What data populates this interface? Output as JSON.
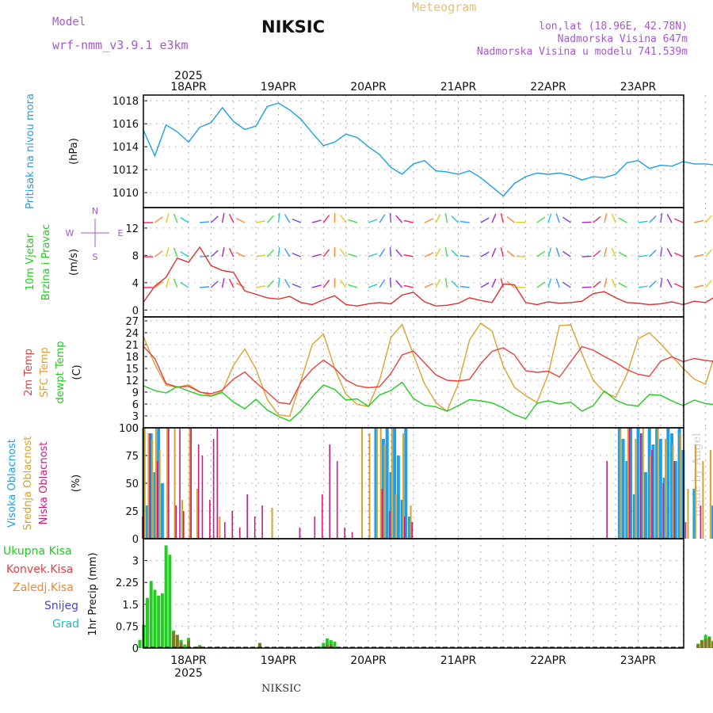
{
  "header": {
    "model_label": "Model",
    "model_name": "wrf-nmm_v3.9.1 e3km",
    "station": "NIKSIC",
    "meteogram": "Meteogram",
    "lonlat": "lon,lat (18.96E, 42.78N)",
    "altitude": "Nadmorska Visina 647m",
    "model_altitude": "Nadmorska Visina u modelu 741.539m",
    "footer_station": "NIKSIC",
    "credit": "made by Angel"
  },
  "colors": {
    "pressure": "#1ea0e6",
    "wind_axis": "#22cc22",
    "t2m": "#e84040",
    "sfc": "#e0a030",
    "dew": "#22cc22",
    "cloud_high": "#1ea0e6",
    "cloud_mid": "#d8a030",
    "cloud_low": "#cc1a80",
    "precip_total": "#22cc22",
    "precip_conv": "#e04040",
    "precip_frozen": "#ee8833",
    "precip_snow": "#4444dd",
    "precip_hail": "#22bbbb"
  },
  "chart_data": {
    "type": "meteogram",
    "x_days": [
      "18APR",
      "19APR",
      "20APR",
      "21APR",
      "22APR",
      "23APR"
    ],
    "year": "2025",
    "x_hours": [
      0,
      6,
      12,
      18,
      24,
      30,
      36,
      42,
      48,
      54,
      60,
      66,
      72,
      78,
      84,
      90,
      96,
      102,
      108,
      114,
      120,
      126,
      132,
      138
    ],
    "panels": [
      {
        "name": "pressure",
        "labels": [
          "Pritisak na nivou mora"
        ],
        "unit": "(hPa)",
        "ylim": [
          1008.7,
          1018.5
        ],
        "ticks": [
          1010,
          1012,
          1014,
          1016,
          1018
        ],
        "x": [
          -12,
          -9,
          -6,
          -3,
          0,
          3,
          6,
          9,
          12,
          15,
          18,
          21,
          24,
          27,
          30,
          33,
          36,
          39,
          42,
          45,
          48,
          51,
          54,
          57,
          60,
          63,
          66,
          69,
          72,
          75,
          78,
          81,
          84,
          87,
          90,
          93,
          96,
          99,
          102,
          105,
          108,
          111,
          114,
          117,
          120,
          123,
          126,
          129,
          132,
          135,
          138,
          141,
          144,
          147,
          150
        ],
        "values": [
          1015.4,
          1013.2,
          1015.9,
          1015.3,
          1014.4,
          1015.7,
          1016.1,
          1017.4,
          1016.2,
          1015.5,
          1015.8,
          1017.5,
          1017.8,
          1017.2,
          1016.4,
          1015.2,
          1014.1,
          1014.4,
          1015.1,
          1014.8,
          1014.0,
          1013.3,
          1012.2,
          1011.6,
          1012.5,
          1012.8,
          1011.9,
          1011.8,
          1011.6,
          1011.9,
          1011.3,
          1010.5,
          1009.7,
          1010.8,
          1011.4,
          1011.7,
          1011.6,
          1011.7,
          1011.5,
          1011.1,
          1011.4,
          1011.3,
          1011.6,
          1012.6,
          1012.8,
          1012.1,
          1012.4,
          1012.3,
          1012.7,
          1012.5,
          1012.5,
          1012.4,
          1012.2,
          1012.3,
          1012.2
        ]
      },
      {
        "name": "wind",
        "labels": [
          "10m Vjetar",
          "Brzina i Pravac"
        ],
        "unit": "(m/s)",
        "ylim": [
          -1,
          15
        ],
        "ticks": [
          0,
          4,
          8,
          12
        ],
        "compass": {
          "north": "N",
          "west": "W",
          "east": "E",
          "south": "S"
        },
        "x": [
          -12,
          -9,
          -6,
          -3,
          0,
          3,
          6,
          9,
          12,
          15,
          18,
          21,
          24,
          27,
          30,
          33,
          36,
          39,
          42,
          45,
          48,
          51,
          54,
          57,
          60,
          63,
          66,
          69,
          72,
          75,
          78,
          81,
          84,
          87,
          90,
          93,
          96,
          99,
          102,
          105,
          108,
          111,
          114,
          117,
          120,
          123,
          126,
          129,
          132,
          135,
          138,
          141,
          144,
          147,
          150
        ],
        "speed": [
          1.2,
          3.5,
          4.8,
          7.6,
          7.0,
          9.2,
          6.5,
          5.8,
          5.5,
          2.8,
          2.3,
          1.8,
          1.6,
          2.0,
          1.1,
          0.8,
          1.5,
          2.1,
          0.8,
          0.6,
          0.9,
          1.1,
          0.9,
          2.2,
          2.6,
          1.2,
          0.6,
          0.7,
          1.0,
          1.8,
          1.4,
          1.1,
          3.8,
          3.7,
          1.1,
          0.8,
          1.2,
          1.0,
          1.1,
          1.3,
          2.4,
          2.7,
          1.8,
          1.1,
          1.0,
          0.8,
          0.9,
          1.2,
          0.8,
          1.3,
          1.1,
          2.1,
          3.8,
          3.5,
          3.0
        ],
        "bands": [
          12.8,
          7.8,
          3.3
        ]
      },
      {
        "name": "temperature",
        "labels": [
          "2m Temp",
          "SFC Temp",
          "dewpt Temp"
        ],
        "unit": "(C)",
        "ylim": [
          0,
          28
        ],
        "ticks": [
          0,
          3,
          6,
          9,
          12,
          15,
          18,
          21,
          24,
          27
        ],
        "x": [
          -12,
          -9,
          -6,
          -3,
          0,
          3,
          6,
          9,
          12,
          15,
          18,
          21,
          24,
          27,
          30,
          33,
          36,
          39,
          42,
          45,
          48,
          51,
          54,
          57,
          60,
          63,
          66,
          69,
          72,
          75,
          78,
          81,
          84,
          87,
          90,
          93,
          96,
          99,
          102,
          105,
          108,
          111,
          114,
          117,
          120,
          123,
          126,
          129,
          132,
          135,
          138,
          141,
          144,
          147,
          150
        ],
        "t2m": [
          20.5,
          17.5,
          11.2,
          10.3,
          10.5,
          9.0,
          8.6,
          9.5,
          12.3,
          14.1,
          11.4,
          9.0,
          6.4,
          6.0,
          11.5,
          14.8,
          17.1,
          15.1,
          12.1,
          10.6,
          10.1,
          10.4,
          13.7,
          18.4,
          19.4,
          16.4,
          13.4,
          12.0,
          11.8,
          12.2,
          16.2,
          19.3,
          20.2,
          18.4,
          14.4,
          14.0,
          14.3,
          12.8,
          16.7,
          20.5,
          19.6,
          18.0,
          16.5,
          14.7,
          13.5,
          13.0,
          16.8,
          17.9,
          16.7,
          17.5,
          17.0,
          16.7,
          17.3,
          16.8,
          16.5
        ],
        "sfc": [
          23.0,
          16.0,
          10.8,
          10.2,
          10.9,
          9.1,
          8.1,
          9.2,
          15.8,
          19.9,
          14.8,
          7.2,
          3.3,
          2.9,
          11.9,
          21.0,
          23.7,
          15.0,
          8.5,
          5.9,
          5.4,
          12.0,
          22.8,
          26.1,
          18.5,
          11.1,
          6.4,
          4.2,
          11.1,
          22.2,
          26.4,
          24.4,
          15.5,
          10.2,
          8.1,
          6.4,
          13.5,
          25.8,
          26.0,
          18.7,
          12.0,
          9.0,
          7.7,
          13.5,
          22.5,
          24.0,
          21.2,
          18.1,
          15.0,
          12.3,
          11.0,
          20.0,
          24.0,
          18.0,
          21.0
        ],
        "dew": [
          10.6,
          9.4,
          8.8,
          10.4,
          9.3,
          8.3,
          8.0,
          8.9,
          6.5,
          4.8,
          7.2,
          4.5,
          2.9,
          1.7,
          4.3,
          7.8,
          10.8,
          9.7,
          7.0,
          7.3,
          5.4,
          8.3,
          9.4,
          11.5,
          7.4,
          5.7,
          5.3,
          4.2,
          5.6,
          7.1,
          6.8,
          6.3,
          5.0,
          3.3,
          2.3,
          6.2,
          6.8,
          6.0,
          6.5,
          4.2,
          5.6,
          9.3,
          7.0,
          5.8,
          5.5,
          8.4,
          8.2,
          6.8,
          5.6,
          7.0,
          6.1,
          5.8,
          8.3,
          10.1,
          10.2
        ]
      },
      {
        "name": "clouds",
        "labels": [
          "Visoka Oblacnost",
          "Srednja Oblacnost",
          "Niska Oblacnost"
        ],
        "unit": "(%)",
        "ylim": [
          0,
          100
        ],
        "ticks": [
          0,
          25,
          50,
          75,
          100
        ],
        "high": [
          [
            -12,
            100
          ],
          [
            -11,
            30
          ],
          [
            -10,
            95
          ],
          [
            -9,
            60
          ],
          [
            -8,
            100
          ],
          [
            -7,
            50
          ],
          [
            30,
            0
          ],
          [
            36,
            0
          ],
          [
            50,
            100
          ],
          [
            52,
            90
          ],
          [
            53,
            100
          ],
          [
            54,
            60
          ],
          [
            55,
            100
          ],
          [
            56,
            75
          ],
          [
            57,
            35
          ],
          [
            58,
            100
          ],
          [
            59,
            20
          ],
          [
            115,
            100
          ],
          [
            116,
            90
          ],
          [
            117,
            70
          ],
          [
            118,
            100
          ],
          [
            119,
            40
          ],
          [
            120,
            100
          ],
          [
            121,
            95
          ],
          [
            122,
            60
          ],
          [
            123,
            100
          ],
          [
            124,
            85
          ],
          [
            125,
            100
          ],
          [
            126,
            90
          ],
          [
            127,
            55
          ],
          [
            128,
            100
          ],
          [
            129,
            95
          ],
          [
            130,
            70
          ],
          [
            131,
            100
          ],
          [
            132,
            80
          ],
          [
            135,
            45
          ],
          [
            140,
            30
          ],
          [
            147,
            60
          ],
          [
            149,
            100
          ]
        ],
        "mid": [
          [
            -12,
            100
          ],
          [
            -11,
            95
          ],
          [
            -10,
            90
          ],
          [
            -9,
            100
          ],
          [
            -8,
            80
          ],
          [
            -6,
            100
          ],
          [
            -4,
            100
          ],
          [
            -2,
            35
          ],
          [
            0,
            100
          ],
          [
            2,
            45
          ],
          [
            8,
            20
          ],
          [
            22,
            28
          ],
          [
            46,
            100
          ],
          [
            48,
            95
          ],
          [
            50,
            100
          ],
          [
            51,
            100
          ],
          [
            52,
            85
          ],
          [
            54,
            100
          ],
          [
            55,
            40
          ],
          [
            57,
            95
          ],
          [
            59,
            30
          ],
          [
            115,
            100
          ],
          [
            117,
            100
          ],
          [
            119,
            90
          ],
          [
            121,
            100
          ],
          [
            123,
            75
          ],
          [
            125,
            100
          ],
          [
            127,
            90
          ],
          [
            129,
            85
          ],
          [
            131,
            95
          ],
          [
            133,
            45
          ],
          [
            135,
            85
          ],
          [
            137,
            70
          ],
          [
            139,
            80
          ],
          [
            141,
            90
          ],
          [
            143,
            20
          ],
          [
            145,
            40
          ],
          [
            146,
            60
          ],
          [
            148,
            100
          ],
          [
            150,
            100
          ]
        ],
        "low": [
          [
            -12,
            20
          ],
          [
            -10,
            95
          ],
          [
            -8,
            70
          ],
          [
            -5,
            100
          ],
          [
            -3,
            30
          ],
          [
            -2,
            100
          ],
          [
            -1,
            25
          ],
          [
            1,
            100
          ],
          [
            3,
            85
          ],
          [
            4,
            75
          ],
          [
            6,
            35
          ],
          [
            7,
            90
          ],
          [
            8,
            100
          ],
          [
            10,
            15
          ],
          [
            12,
            25
          ],
          [
            14,
            10
          ],
          [
            16,
            40
          ],
          [
            18,
            20
          ],
          [
            20,
            30
          ],
          [
            30,
            10
          ],
          [
            34,
            20
          ],
          [
            36,
            40
          ],
          [
            38,
            85
          ],
          [
            40,
            70
          ],
          [
            42,
            10
          ],
          [
            44,
            6
          ],
          [
            52,
            45
          ],
          [
            54,
            25
          ],
          [
            58,
            20
          ],
          [
            60,
            15
          ],
          [
            112,
            70
          ],
          [
            118,
            100
          ],
          [
            121,
            95
          ],
          [
            124,
            80
          ],
          [
            127,
            50
          ],
          [
            130,
            70
          ],
          [
            133,
            15
          ],
          [
            137,
            30
          ]
        ]
      },
      {
        "name": "precip",
        "labels": [
          "Ukupna Kisa",
          "Konvek.Kisa",
          "Zaledj.Kisa",
          "Snijeg",
          "Grad"
        ],
        "unit": "1hr Precip (mm)",
        "ylim": [
          0,
          3.75
        ],
        "ticks": [
          0,
          0.75,
          1.5,
          2.25,
          3
        ],
        "tick_labels": [
          "0",
          "0.75",
          "1.5",
          "2.25",
          "3"
        ],
        "total": [
          [
            -13,
            0.28
          ],
          [
            -12,
            0.8
          ],
          [
            -11,
            1.72
          ],
          [
            -10,
            2.3
          ],
          [
            -9,
            2.0
          ],
          [
            -8,
            1.8
          ],
          [
            -7,
            1.88
          ],
          [
            -6,
            3.52
          ],
          [
            -5,
            3.2
          ],
          [
            -4,
            0.6
          ],
          [
            -3,
            0.45
          ],
          [
            -2,
            0.28
          ],
          [
            -1,
            0.12
          ],
          [
            0,
            0.35
          ],
          [
            3,
            0.1
          ],
          [
            8,
            0.05
          ],
          [
            12,
            0.04
          ],
          [
            19,
            0.18
          ],
          [
            35,
            0.06
          ],
          [
            36,
            0.18
          ],
          [
            37,
            0.33
          ],
          [
            38,
            0.27
          ],
          [
            39,
            0.22
          ],
          [
            42,
            0.04
          ],
          [
            68,
            0.04
          ],
          [
            136,
            0.15
          ],
          [
            137,
            0.28
          ],
          [
            138,
            0.45
          ],
          [
            139,
            0.4
          ],
          [
            140,
            0.25
          ],
          [
            141,
            0.06
          ],
          [
            146,
            0.42
          ],
          [
            148,
            0.18
          ],
          [
            150,
            0.15
          ]
        ],
        "conv": [
          [
            -4,
            0.55
          ],
          [
            -3,
            0.45
          ],
          [
            -2,
            0.2
          ],
          [
            0,
            0.25
          ],
          [
            3,
            0.08
          ],
          [
            19,
            0.15
          ],
          [
            37,
            0.1
          ],
          [
            38,
            0.12
          ],
          [
            136,
            0.12
          ],
          [
            137,
            0.25
          ],
          [
            138,
            0.3
          ],
          [
            139,
            0.35
          ],
          [
            140,
            0.2
          ],
          [
            146,
            0.38
          ],
          [
            148,
            0.12
          ],
          [
            150,
            0.12
          ]
        ]
      }
    ]
  }
}
